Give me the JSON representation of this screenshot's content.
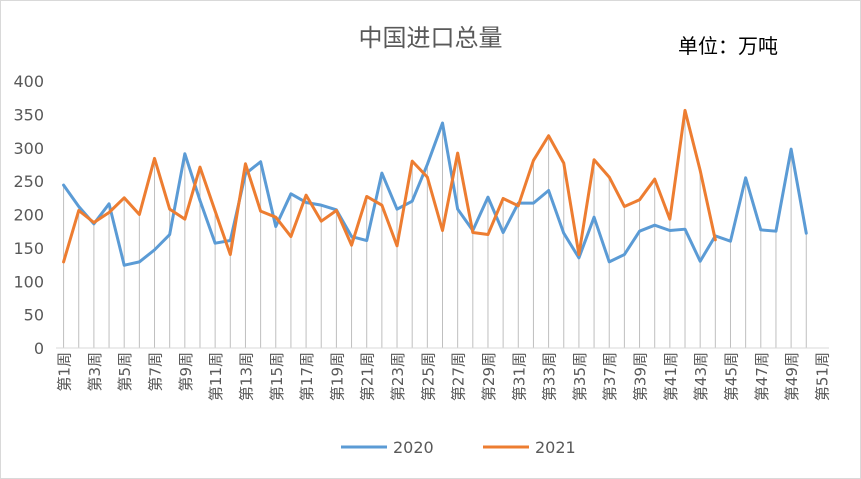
{
  "chart_data": {
    "type": "line",
    "title": "中国进口总量",
    "unit_label": "单位：万吨",
    "ylim": [
      0,
      400
    ],
    "yticks": [
      0,
      50,
      100,
      150,
      200,
      250,
      300,
      350,
      400
    ],
    "x": [
      "第1周",
      "第2周",
      "第3周",
      "第4周",
      "第5周",
      "第6周",
      "第7周",
      "第8周",
      "第9周",
      "第10周",
      "第11周",
      "第12周",
      "第13周",
      "第14周",
      "第15周",
      "第16周",
      "第17周",
      "第18周",
      "第19周",
      "第20周",
      "第21周",
      "第22周",
      "第23周",
      "第24周",
      "第25周",
      "第26周",
      "第27周",
      "第28周",
      "第29周",
      "第30周",
      "第31周",
      "第32周",
      "第33周",
      "第34周",
      "第35周",
      "第36周",
      "第37周",
      "第38周",
      "第39周",
      "第40周",
      "第41周",
      "第42周",
      "第43周",
      "第44周",
      "第45周",
      "第46周",
      "第47周",
      "第48周",
      "第49周",
      "第50周",
      "第51周"
    ],
    "xtick_labels": [
      "第1周",
      "第3周",
      "第5周",
      "第7周",
      "第9周",
      "第11周",
      "第13周",
      "第15周",
      "第17周",
      "第19周",
      "第21周",
      "第23周",
      "第25周",
      "第27周",
      "第29周",
      "第31周",
      "第33周",
      "第35周",
      "第37周",
      "第39周",
      "第41周",
      "第43周",
      "第45周",
      "第47周",
      "第49周",
      "第51周"
    ],
    "drop_lines": true,
    "legend_position": "bottom",
    "series": [
      {
        "name": "2020",
        "color": "#5b9bd5",
        "values": [
          244,
          212,
          186,
          216,
          124,
          129,
          147,
          170,
          291,
          221,
          157,
          161,
          261,
          279,
          182,
          231,
          218,
          214,
          207,
          167,
          161,
          262,
          208,
          220,
          275,
          337,
          208,
          176,
          226,
          173,
          217,
          217,
          236,
          172,
          135,
          196,
          129,
          140,
          175,
          184,
          176,
          178,
          130,
          168,
          160,
          255,
          177,
          175,
          298,
          172,
          null
        ]
      },
      {
        "name": "2021",
        "color": "#ed7d31",
        "values": [
          129,
          206,
          188,
          203,
          225,
          200,
          284,
          208,
          193,
          271,
          205,
          140,
          276,
          205,
          196,
          167,
          229,
          190,
          206,
          154,
          227,
          214,
          153,
          280,
          256,
          176,
          292,
          173,
          170,
          224,
          213,
          281,
          318,
          277,
          140,
          282,
          256,
          212,
          222,
          253,
          193,
          356,
          266,
          162,
          null,
          null,
          null,
          null,
          null,
          null,
          null
        ]
      }
    ]
  }
}
